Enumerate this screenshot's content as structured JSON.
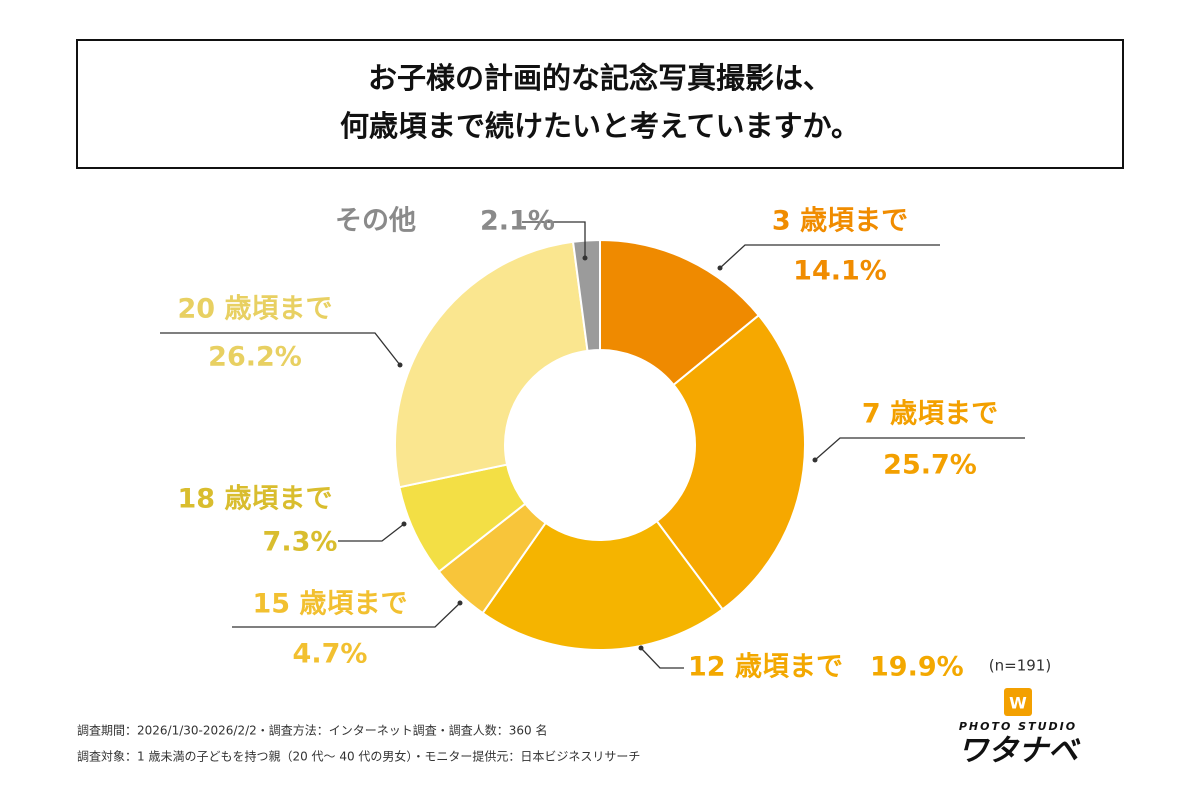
{
  "chart_data": {
    "type": "donut",
    "title": [
      "お子様の計画的な記念写真撮影は、",
      "何歳頃まで続けたいと考えていますか。"
    ],
    "categories": [
      "3 歳頃まで",
      "7 歳頃まで",
      "12 歳頃まで",
      "15 歳頃まで",
      "18 歳頃まで",
      "20 歳頃まで",
      "その他"
    ],
    "values": [
      14.1,
      25.7,
      19.9,
      4.7,
      7.3,
      26.2,
      2.1
    ],
    "value_labels": [
      "14.1%",
      "25.7%",
      "19.9%",
      "4.7%",
      "7.3%",
      "26.2%",
      "2.1%"
    ],
    "colors": [
      "#ef8a00",
      "#f6a800",
      "#f5b400",
      "#f8c53a",
      "#f3df45",
      "#fae68f",
      "#9b9b9b"
    ],
    "label_colors": [
      "#f08c00",
      "#f3a000",
      "#f3a800",
      "#f2c030",
      "#d9bd2e",
      "#e8d062",
      "#8a8a8a"
    ],
    "sample_note": "(n=191)",
    "footnotes": [
      "調査期間：2026/1/30-2026/2/2・調査方法：インターネット調査・調査人数：360 名",
      "調査対象：1 歳未満の子どもを持つ親（20 代〜 40 代の男女）・モニター提供元：日本ビジネスリサーチ"
    ],
    "logo": {
      "subtitle": "PHOTO STUDIO",
      "name": "ワタナベ"
    }
  }
}
